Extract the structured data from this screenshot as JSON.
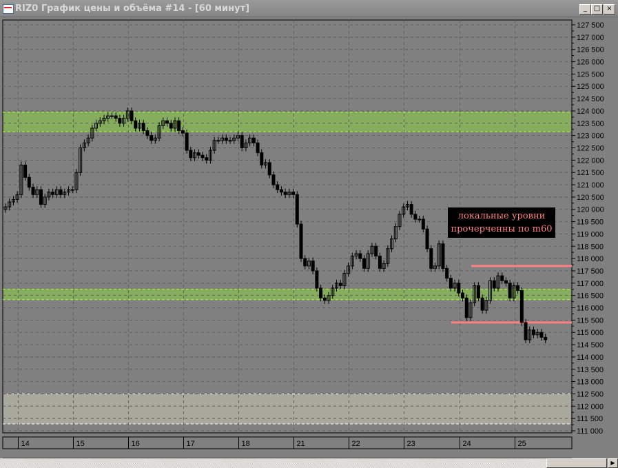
{
  "window": {
    "title": "RIZ0 График цены и объёма #14 - [60 минут]",
    "buttons": {
      "minimize": "_",
      "maximize": "□",
      "close": "×"
    }
  },
  "annotation": {
    "line1": "локальные уровни",
    "line2": "прочерченны по m60"
  },
  "colors": {
    "background": "#808080",
    "zone_green": "#86ad5e",
    "zone_green_border": "#a8ff30",
    "zone_gray": "#a8a89c",
    "level_line": "#ff8080",
    "annotation_bg": "#000000",
    "annotation_text": "#ff8080"
  },
  "chart_data": {
    "type": "candlestick",
    "instrument": "RIZ0",
    "timeframe": "60 минут",
    "ylim": [
      111000,
      127500
    ],
    "y_ticks": [
      "127 500",
      "127 000",
      "126 500",
      "126 000",
      "125 500",
      "125 000",
      "124 500",
      "124 000",
      "123 500",
      "123 000",
      "122 500",
      "122 000",
      "121 500",
      "121 000",
      "120 500",
      "120 000",
      "119 500",
      "119 000",
      "118 500",
      "118 000",
      "117 500",
      "117 000",
      "116 500",
      "116 000",
      "115 500",
      "115 000",
      "114 500",
      "114 000",
      "113 500",
      "113 000",
      "112 500",
      "112 000",
      "111 500",
      "111 000"
    ],
    "x_ticks": [
      "14",
      "15",
      "16",
      "17",
      "18",
      "21",
      "22",
      "23",
      "24",
      "25"
    ],
    "grid": true,
    "first_open": 120000,
    "closes": [
      120100,
      120300,
      120400,
      120600,
      121800,
      121300,
      120900,
      120600,
      120800,
      120200,
      120500,
      120700,
      120600,
      120800,
      120600,
      120700,
      120800,
      120800,
      121500,
      122500,
      122700,
      122900,
      123300,
      123500,
      123600,
      123700,
      123800,
      123800,
      123700,
      123500,
      123700,
      124000,
      123600,
      123300,
      123500,
      123200,
      123000,
      122800,
      122900,
      123400,
      123600,
      123500,
      123300,
      123600,
      123200,
      123100,
      122400,
      122100,
      122300,
      122200,
      122100,
      122000,
      122400,
      122800,
      122800,
      122900,
      122800,
      122800,
      122900,
      123000,
      122500,
      122700,
      122900,
      122700,
      122300,
      121800,
      121900,
      121400,
      121000,
      120800,
      120700,
      120600,
      120700,
      120600,
      119400,
      118000,
      117700,
      117900,
      117500,
      116800,
      116400,
      116300,
      116500,
      116800,
      117000,
      116900,
      117400,
      117700,
      118100,
      118200,
      118000,
      117600,
      118200,
      118500,
      118100,
      117600,
      117800,
      118400,
      118800,
      119300,
      119800,
      120100,
      120200,
      119800,
      119600,
      119600,
      119200,
      118400,
      117600,
      117700,
      118600,
      117600,
      117200,
      116800,
      117000,
      116600,
      116400,
      115600,
      116200,
      116900,
      116400,
      115900,
      116300,
      117100,
      116800,
      117300,
      117100,
      117000,
      116400,
      116900,
      116700,
      115400,
      114700,
      115100,
      114900,
      115000,
      114800,
      114700
    ],
    "zones": [
      {
        "kind": "green",
        "from": 123150,
        "to": 123950
      },
      {
        "kind": "green",
        "from": 116330,
        "to": 116750
      },
      {
        "kind": "gray",
        "from": 111280,
        "to": 112500
      }
    ],
    "levels": [
      117700,
      115400
    ]
  }
}
